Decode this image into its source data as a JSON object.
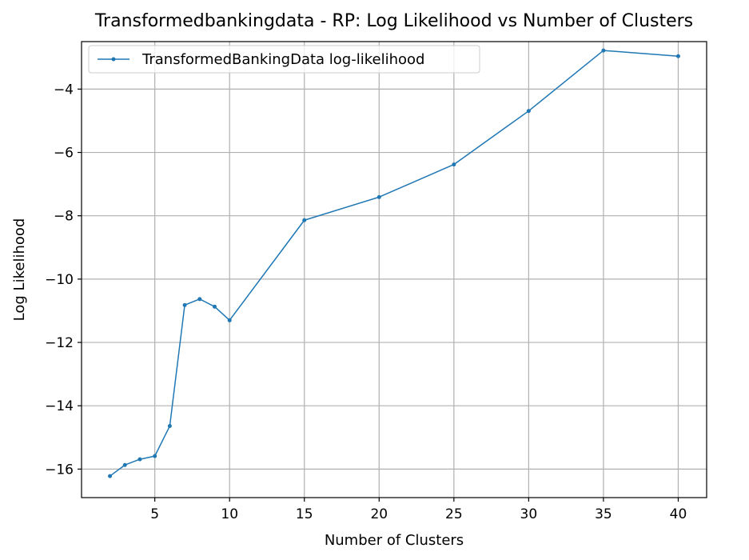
{
  "chart_data": {
    "type": "line",
    "title": "Transformedbankingdata - RP: Log Likelihood vs Number of Clusters",
    "xlabel": "Number of Clusters",
    "ylabel": "Log Likelihood",
    "xlim": [
      0.1,
      41.9
    ],
    "ylim": [
      -16.9,
      -2.5
    ],
    "xticks": [
      5,
      10,
      15,
      20,
      25,
      30,
      35,
      40
    ],
    "yticks": [
      -16,
      -14,
      -12,
      -10,
      -8,
      -6,
      -4
    ],
    "grid": true,
    "legend_position": "top-left",
    "series": [
      {
        "name": "TransformedBankingData log-likelihood",
        "color": "#1f77b4",
        "x": [
          2,
          3,
          4,
          5,
          6,
          7,
          8,
          9,
          10,
          15,
          20,
          25,
          30,
          35,
          40
        ],
        "y": [
          -16.22,
          -15.87,
          -15.69,
          -15.59,
          -14.64,
          -10.82,
          -10.63,
          -10.87,
          -11.3,
          -8.14,
          -7.41,
          -6.38,
          -4.69,
          -2.78,
          -2.96
        ]
      }
    ]
  }
}
